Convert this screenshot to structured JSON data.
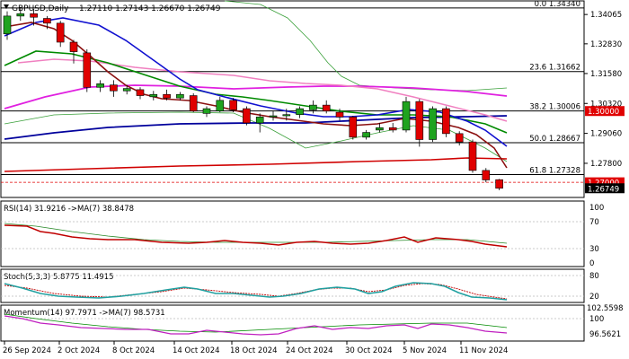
{
  "header": {
    "symbol": "GBPUSD,Daily",
    "ohlc": "1.27110 1.27143 1.26670 1.26749"
  },
  "fib_levels": [
    {
      "label": "0.0 1.34340",
      "price": 1.3434
    },
    {
      "label": "23.6 1.31662",
      "price": 1.31662
    },
    {
      "label": "38.2 1.30006",
      "price": 1.30006
    },
    {
      "label": "50.0 1.28667",
      "price": 1.28667
    },
    {
      "label": "61.8 1.27328",
      "price": 1.27328
    }
  ],
  "price_axis": {
    "ticks": [
      "1.34065",
      "1.32830",
      "1.31580",
      "1.30320",
      "1.29060",
      "1.27800"
    ],
    "tick_values": [
      1.34065,
      1.3283,
      1.3158,
      1.3032,
      1.2906,
      1.278
    ],
    "badges": [
      {
        "label": "1.30000",
        "price": 1.3,
        "color": "#e00000"
      },
      {
        "label": "1.27000",
        "price": 1.27,
        "color": "#e00000"
      },
      {
        "label": "1.26749",
        "price": 1.26749,
        "color": "#000000"
      }
    ]
  },
  "rsi": {
    "label": "RSI(14) 31.9216 ->MA(7) 38.8478",
    "ticks": [
      "100",
      "70",
      "30",
      "0"
    ]
  },
  "stoch": {
    "label": "Stoch(5,3,3) 5.8775 11.4915",
    "ticks": [
      "80",
      "20"
    ]
  },
  "momentum": {
    "label": "Momentum(14) 97.7971 ->MA(7) 98.5731",
    "ticks": [
      "102.5598",
      "100",
      "96.5621"
    ]
  },
  "dates": [
    "26 Sep 2024",
    "2 Oct 2024",
    "8 Oct 2024",
    "14 Oct 2024",
    "18 Oct 2024",
    "24 Oct 2024",
    "30 Oct 2024",
    "5 Nov 2024",
    "11 Nov 2024"
  ],
  "colors": {
    "up": "#1fa31f",
    "down": "#e00000",
    "ma_blue": "#00009c",
    "ma_green": "#008a00",
    "ma_magenta": "#e020e0",
    "ma_red": "#d00000",
    "ma_darkred": "#8b1010",
    "rsi_line": "#c00000",
    "stoch_main": "#20a0a0",
    "stoch_signal": "#c00000",
    "mom_line": "#c020c0",
    "mom_ma": "#008a00"
  },
  "chart_data": {
    "type": "candlestick",
    "title": "GBPUSD,Daily",
    "candles": [
      {
        "o": 1.3325,
        "h": 1.342,
        "l": 1.33,
        "c": 1.34
      },
      {
        "o": 1.34,
        "h": 1.3435,
        "l": 1.338,
        "c": 1.341
      },
      {
        "o": 1.341,
        "h": 1.343,
        "l": 1.336,
        "c": 1.3395
      },
      {
        "o": 1.339,
        "h": 1.34,
        "l": 1.3345,
        "c": 1.337
      },
      {
        "o": 1.337,
        "h": 1.338,
        "l": 1.327,
        "c": 1.329
      },
      {
        "o": 1.329,
        "h": 1.33,
        "l": 1.32,
        "c": 1.325
      },
      {
        "o": 1.3245,
        "h": 1.326,
        "l": 1.308,
        "c": 1.31
      },
      {
        "o": 1.31,
        "h": 1.313,
        "l": 1.308,
        "c": 1.3115
      },
      {
        "o": 1.311,
        "h": 1.313,
        "l": 1.306,
        "c": 1.3085
      },
      {
        "o": 1.3085,
        "h": 1.311,
        "l": 1.307,
        "c": 1.3095
      },
      {
        "o": 1.309,
        "h": 1.31,
        "l": 1.305,
        "c": 1.3065
      },
      {
        "o": 1.306,
        "h": 1.3085,
        "l": 1.3045,
        "c": 1.307
      },
      {
        "o": 1.307,
        "h": 1.309,
        "l": 1.3045,
        "c": 1.3055
      },
      {
        "o": 1.3055,
        "h": 1.308,
        "l": 1.3045,
        "c": 1.307
      },
      {
        "o": 1.3065,
        "h": 1.3075,
        "l": 1.2995,
        "c": 1.3
      },
      {
        "o": 1.299,
        "h": 1.302,
        "l": 1.2975,
        "c": 1.301
      },
      {
        "o": 1.3,
        "h": 1.306,
        "l": 1.2995,
        "c": 1.3045
      },
      {
        "o": 1.3045,
        "h": 1.3055,
        "l": 1.2995,
        "c": 1.3005
      },
      {
        "o": 1.301,
        "h": 1.302,
        "l": 1.294,
        "c": 1.295
      },
      {
        "o": 1.295,
        "h": 1.299,
        "l": 1.291,
        "c": 1.2975
      },
      {
        "o": 1.2975,
        "h": 1.3,
        "l": 1.296,
        "c": 1.298
      },
      {
        "o": 1.298,
        "h": 1.301,
        "l": 1.296,
        "c": 1.2985
      },
      {
        "o": 1.2985,
        "h": 1.302,
        "l": 1.297,
        "c": 1.301
      },
      {
        "o": 1.3005,
        "h": 1.3045,
        "l": 1.299,
        "c": 1.3025
      },
      {
        "o": 1.3025,
        "h": 1.3045,
        "l": 1.299,
        "c": 1.3
      },
      {
        "o": 1.2995,
        "h": 1.301,
        "l": 1.296,
        "c": 1.2975
      },
      {
        "o": 1.2975,
        "h": 1.298,
        "l": 1.288,
        "c": 1.289
      },
      {
        "o": 1.289,
        "h": 1.292,
        "l": 1.288,
        "c": 1.291
      },
      {
        "o": 1.292,
        "h": 1.295,
        "l": 1.291,
        "c": 1.293
      },
      {
        "o": 1.293,
        "h": 1.295,
        "l": 1.291,
        "c": 1.292
      },
      {
        "o": 1.292,
        "h": 1.306,
        "l": 1.291,
        "c": 1.304
      },
      {
        "o": 1.304,
        "h": 1.305,
        "l": 1.285,
        "c": 1.288
      },
      {
        "o": 1.288,
        "h": 1.302,
        "l": 1.287,
        "c": 1.301
      },
      {
        "o": 1.301,
        "h": 1.302,
        "l": 1.289,
        "c": 1.2905
      },
      {
        "o": 1.2905,
        "h": 1.2915,
        "l": 1.2855,
        "c": 1.287
      },
      {
        "o": 1.287,
        "h": 1.288,
        "l": 1.274,
        "c": 1.275
      },
      {
        "o": 1.275,
        "h": 1.276,
        "l": 1.27,
        "c": 1.271
      },
      {
        "o": 1.2711,
        "h": 1.2714,
        "l": 1.2667,
        "c": 1.2675
      }
    ],
    "ylim": [
      1.264,
      1.346
    ]
  }
}
